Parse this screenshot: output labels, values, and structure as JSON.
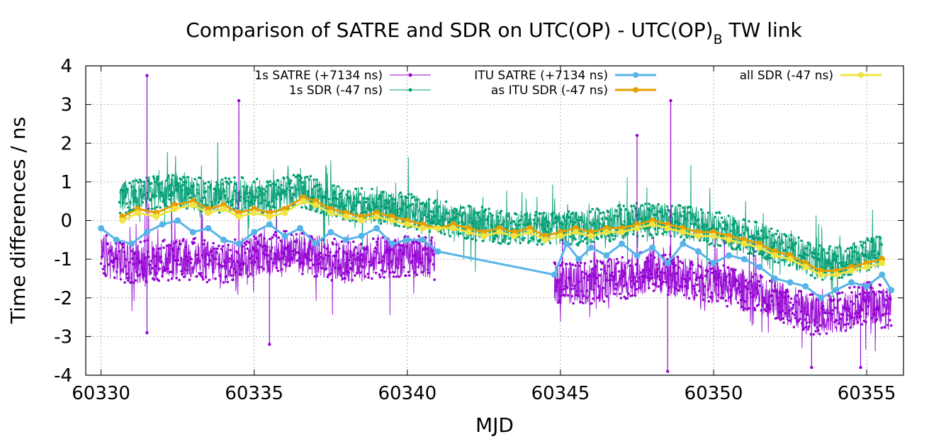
{
  "chart_data": {
    "type": "line",
    "title_main": "Comparison of SATRE and SDR on UTC(OP) - UTC(OP)",
    "title_sub": "B",
    "title_tail": " TW link",
    "xlabel": "MJD",
    "ylabel": "Time differences / ns",
    "xlim": [
      60329.5,
      60356.2
    ],
    "ylim": [
      -4,
      4
    ],
    "xticks": [
      60330,
      60335,
      60340,
      60345,
      60350,
      60355
    ],
    "yticks": [
      -4,
      -3,
      -2,
      -1,
      0,
      1,
      2,
      3,
      4
    ],
    "grid": true,
    "legend_position": "top",
    "series": [
      {
        "name": "1s SATRE (+7134 ns)",
        "color": "#9400d3",
        "style": "noisy-markers",
        "values": [
          [
            60330.0,
            -0.9
          ],
          [
            60331.0,
            -1.1
          ],
          [
            60332.0,
            -1.0
          ],
          [
            60333.0,
            -1.0
          ],
          [
            60334.0,
            -1.1
          ],
          [
            60335.0,
            -0.9
          ],
          [
            60336.0,
            -0.8
          ],
          [
            60337.0,
            -0.9
          ],
          [
            60338.0,
            -1.1
          ],
          [
            60339.0,
            -1.0
          ],
          [
            60340.0,
            -0.9
          ],
          [
            60340.9,
            -1.0
          ],
          [
            60344.8,
            -1.6
          ],
          [
            60346.0,
            -1.6
          ],
          [
            60347.0,
            -1.5
          ],
          [
            60348.0,
            -1.3
          ],
          [
            60349.0,
            -1.5
          ],
          [
            60350.0,
            -1.6
          ],
          [
            60351.0,
            -1.8
          ],
          [
            60352.0,
            -2.0
          ],
          [
            60353.0,
            -2.4
          ],
          [
            60354.0,
            -2.4
          ],
          [
            60355.0,
            -2.1
          ],
          [
            60355.8,
            -2.3
          ]
        ],
        "spikes": [
          [
            60331.5,
            3.75
          ],
          [
            60334.5,
            3.1
          ],
          [
            60347.5,
            2.2
          ],
          [
            60348.6,
            3.1
          ],
          [
            60331.5,
            -2.9
          ],
          [
            60335.5,
            -3.2
          ],
          [
            60348.5,
            -3.9
          ],
          [
            60353.2,
            -3.8
          ],
          [
            60354.8,
            -3.8
          ]
        ]
      },
      {
        "name": "1s SDR (-47 ns)",
        "color": "#009e73",
        "style": "noisy-markers",
        "values": [
          [
            60330.6,
            0.6
          ],
          [
            60331.5,
            0.7
          ],
          [
            60332.5,
            0.8
          ],
          [
            60333.5,
            0.6
          ],
          [
            60334.5,
            0.7
          ],
          [
            60335.5,
            0.6
          ],
          [
            60336.5,
            0.8
          ],
          [
            60337.5,
            0.5
          ],
          [
            60338.5,
            0.4
          ],
          [
            60339.5,
            0.3
          ],
          [
            60340.5,
            0.2
          ],
          [
            60341.5,
            0.0
          ],
          [
            60342.5,
            -0.1
          ],
          [
            60343.5,
            -0.2
          ],
          [
            60344.5,
            -0.2
          ],
          [
            60345.5,
            -0.2
          ],
          [
            60346.5,
            -0.1
          ],
          [
            60347.5,
            0.0
          ],
          [
            60348.5,
            0.0
          ],
          [
            60349.5,
            -0.1
          ],
          [
            60350.5,
            -0.3
          ],
          [
            60351.5,
            -0.5
          ],
          [
            60352.5,
            -0.8
          ],
          [
            60353.5,
            -1.1
          ],
          [
            60354.5,
            -1.0
          ],
          [
            60355.5,
            -0.8
          ]
        ]
      },
      {
        "name": "ITU SATRE (+7134 ns)",
        "color": "#56b4e9",
        "style": "line-points",
        "values": [
          [
            60330.0,
            -0.2
          ],
          [
            60330.5,
            -0.5
          ],
          [
            60331.0,
            -0.6
          ],
          [
            60331.5,
            -0.3
          ],
          [
            60332.0,
            -0.1
          ],
          [
            60332.5,
            0.0
          ],
          [
            60333.0,
            -0.3
          ],
          [
            60333.5,
            -0.2
          ],
          [
            60334.0,
            -0.5
          ],
          [
            60334.5,
            -0.6
          ],
          [
            60335.0,
            -0.3
          ],
          [
            60335.5,
            -0.1
          ],
          [
            60336.0,
            -0.4
          ],
          [
            60336.5,
            -0.2
          ],
          [
            60337.0,
            -0.6
          ],
          [
            60337.5,
            -0.3
          ],
          [
            60338.0,
            -0.5
          ],
          [
            60338.5,
            -0.4
          ],
          [
            60339.0,
            -0.2
          ],
          [
            60339.5,
            -0.6
          ],
          [
            60340.0,
            -0.5
          ],
          [
            60340.5,
            -0.5
          ],
          [
            60341.0,
            -0.8
          ],
          [
            60344.8,
            -1.4
          ],
          [
            60345.2,
            -0.6
          ],
          [
            60345.6,
            -1.0
          ],
          [
            60346.0,
            -0.7
          ],
          [
            60346.5,
            -0.9
          ],
          [
            60347.0,
            -0.6
          ],
          [
            60347.5,
            -0.9
          ],
          [
            60348.0,
            -0.7
          ],
          [
            60348.5,
            -1.1
          ],
          [
            60349.0,
            -0.6
          ],
          [
            60349.5,
            -0.8
          ],
          [
            60350.0,
            -1.1
          ],
          [
            60350.5,
            -0.9
          ],
          [
            60351.0,
            -1.0
          ],
          [
            60351.5,
            -1.2
          ],
          [
            60352.0,
            -1.5
          ],
          [
            60352.5,
            -1.6
          ],
          [
            60353.0,
            -1.7
          ],
          [
            60353.5,
            -2.0
          ],
          [
            60354.0,
            -1.8
          ],
          [
            60354.5,
            -1.6
          ],
          [
            60355.0,
            -1.7
          ],
          [
            60355.5,
            -1.4
          ],
          [
            60355.8,
            -1.8
          ]
        ]
      },
      {
        "name": "as ITU SDR (-47 ns)",
        "color": "#e69f00",
        "style": "line-points",
        "values": [
          [
            60330.7,
            0.1
          ],
          [
            60331.2,
            0.3
          ],
          [
            60331.8,
            0.2
          ],
          [
            60332.4,
            0.4
          ],
          [
            60333.0,
            0.5
          ],
          [
            60333.5,
            0.3
          ],
          [
            60334.0,
            0.4
          ],
          [
            60334.5,
            0.2
          ],
          [
            60335.0,
            0.3
          ],
          [
            60335.5,
            0.2
          ],
          [
            60336.0,
            0.3
          ],
          [
            60336.6,
            0.6
          ],
          [
            60337.0,
            0.5
          ],
          [
            60337.5,
            0.3
          ],
          [
            60338.0,
            0.2
          ],
          [
            60338.5,
            0.1
          ],
          [
            60339.0,
            0.2
          ],
          [
            60339.5,
            0.1
          ],
          [
            60340.0,
            0.0
          ],
          [
            60340.5,
            -0.1
          ],
          [
            60341.0,
            -0.2
          ],
          [
            60341.5,
            -0.1
          ],
          [
            60342.0,
            -0.2
          ],
          [
            60342.5,
            -0.3
          ],
          [
            60343.0,
            -0.2
          ],
          [
            60343.5,
            -0.3
          ],
          [
            60344.0,
            -0.2
          ],
          [
            60344.5,
            -0.4
          ],
          [
            60345.0,
            -0.3
          ],
          [
            60345.5,
            -0.2
          ],
          [
            60346.0,
            -0.3
          ],
          [
            60346.5,
            -0.2
          ],
          [
            60347.0,
            -0.2
          ],
          [
            60347.5,
            -0.1
          ],
          [
            60348.0,
            0.0
          ],
          [
            60348.5,
            -0.1
          ],
          [
            60349.0,
            -0.2
          ],
          [
            60349.5,
            -0.3
          ],
          [
            60350.0,
            -0.3
          ],
          [
            60350.5,
            -0.4
          ],
          [
            60351.0,
            -0.5
          ],
          [
            60351.5,
            -0.6
          ],
          [
            60352.0,
            -0.8
          ],
          [
            60352.5,
            -0.9
          ],
          [
            60353.0,
            -1.1
          ],
          [
            60353.5,
            -1.3
          ],
          [
            60354.0,
            -1.3
          ],
          [
            60354.5,
            -1.2
          ],
          [
            60355.0,
            -1.1
          ],
          [
            60355.5,
            -1.0
          ]
        ]
      },
      {
        "name": "all SDR (-47 ns)",
        "color": "#f0e442",
        "style": "line-points",
        "values": [
          [
            60330.7,
            0.0
          ],
          [
            60331.2,
            0.2
          ],
          [
            60331.8,
            0.1
          ],
          [
            60332.4,
            0.3
          ],
          [
            60333.0,
            0.4
          ],
          [
            60333.5,
            0.2
          ],
          [
            60334.0,
            0.3
          ],
          [
            60334.5,
            0.1
          ],
          [
            60335.0,
            0.2
          ],
          [
            60335.5,
            0.1
          ],
          [
            60336.0,
            0.2
          ],
          [
            60336.6,
            0.5
          ],
          [
            60337.0,
            0.4
          ],
          [
            60337.5,
            0.2
          ],
          [
            60338.0,
            0.1
          ],
          [
            60338.5,
            0.0
          ],
          [
            60339.0,
            0.1
          ],
          [
            60339.5,
            0.0
          ],
          [
            60340.0,
            -0.1
          ],
          [
            60340.5,
            -0.2
          ],
          [
            60341.0,
            -0.2
          ],
          [
            60341.5,
            -0.2
          ],
          [
            60342.0,
            -0.3
          ],
          [
            60342.5,
            -0.4
          ],
          [
            60343.0,
            -0.3
          ],
          [
            60343.5,
            -0.4
          ],
          [
            60344.0,
            -0.3
          ],
          [
            60344.5,
            -0.5
          ],
          [
            60345.0,
            -0.4
          ],
          [
            60345.5,
            -0.3
          ],
          [
            60346.0,
            -0.4
          ],
          [
            60346.5,
            -0.3
          ],
          [
            60347.0,
            -0.3
          ],
          [
            60347.5,
            -0.2
          ],
          [
            60348.0,
            -0.1
          ],
          [
            60348.5,
            -0.2
          ],
          [
            60349.0,
            -0.3
          ],
          [
            60349.5,
            -0.4
          ],
          [
            60350.0,
            -0.4
          ],
          [
            60350.5,
            -0.5
          ],
          [
            60351.0,
            -0.6
          ],
          [
            60351.5,
            -0.7
          ],
          [
            60352.0,
            -0.9
          ],
          [
            60352.5,
            -1.0
          ],
          [
            60353.0,
            -1.2
          ],
          [
            60353.5,
            -1.4
          ],
          [
            60354.0,
            -1.4
          ],
          [
            60354.5,
            -1.3
          ],
          [
            60355.0,
            -1.2
          ],
          [
            60355.5,
            -1.1
          ]
        ]
      }
    ]
  }
}
